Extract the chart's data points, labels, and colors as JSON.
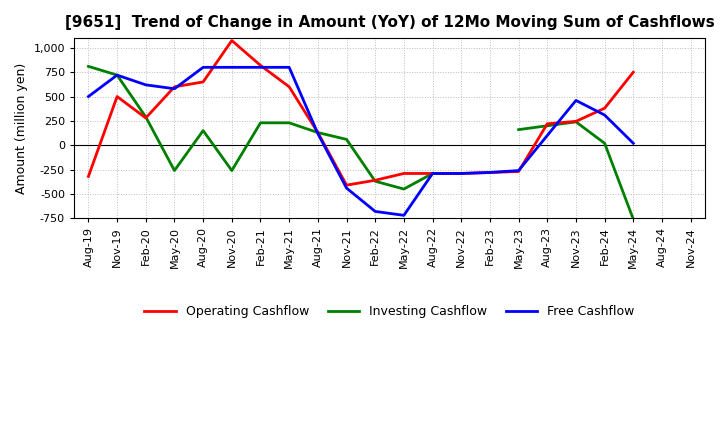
{
  "title": "[9651]  Trend of Change in Amount (YoY) of 12Mo Moving Sum of Cashflows",
  "ylabel": "Amount (million yen)",
  "x_labels": [
    "Aug-19",
    "Nov-19",
    "Feb-20",
    "May-20",
    "Aug-20",
    "Nov-20",
    "Feb-21",
    "May-21",
    "Aug-21",
    "Nov-21",
    "Feb-22",
    "May-22",
    "Aug-22",
    "Nov-22",
    "Feb-23",
    "May-23",
    "Aug-23",
    "Nov-23",
    "Feb-24",
    "May-24",
    "Aug-24",
    "Nov-24"
  ],
  "ylim": [
    -750,
    1100
  ],
  "yticks": [
    -750,
    -500,
    -250,
    0,
    250,
    500,
    750,
    1000
  ],
  "operating_cashflow": [
    -320,
    500,
    280,
    600,
    650,
    1075,
    820,
    600,
    130,
    -410,
    -360,
    -290,
    -290,
    -290,
    -280,
    -270,
    220,
    245,
    380,
    750,
    null,
    null
  ],
  "investing_cashflow": [
    810,
    720,
    290,
    -260,
    150,
    -260,
    230,
    230,
    130,
    60,
    -370,
    -450,
    -290,
    -290,
    null,
    160,
    200,
    240,
    20,
    -760,
    null,
    null
  ],
  "free_cashflow": [
    500,
    720,
    620,
    580,
    800,
    800,
    800,
    800,
    120,
    -440,
    -680,
    -720,
    -290,
    -290,
    -280,
    -260,
    100,
    460,
    310,
    20,
    null,
    null
  ],
  "operating_color": "#ff0000",
  "investing_color": "#008000",
  "free_color": "#0000ff",
  "bg_color": "#ffffff",
  "plot_bg_color": "#ffffff",
  "grid_color": "#bbbbbb",
  "legend_labels": [
    "Operating Cashflow",
    "Investing Cashflow",
    "Free Cashflow"
  ],
  "line_width": 2.0
}
